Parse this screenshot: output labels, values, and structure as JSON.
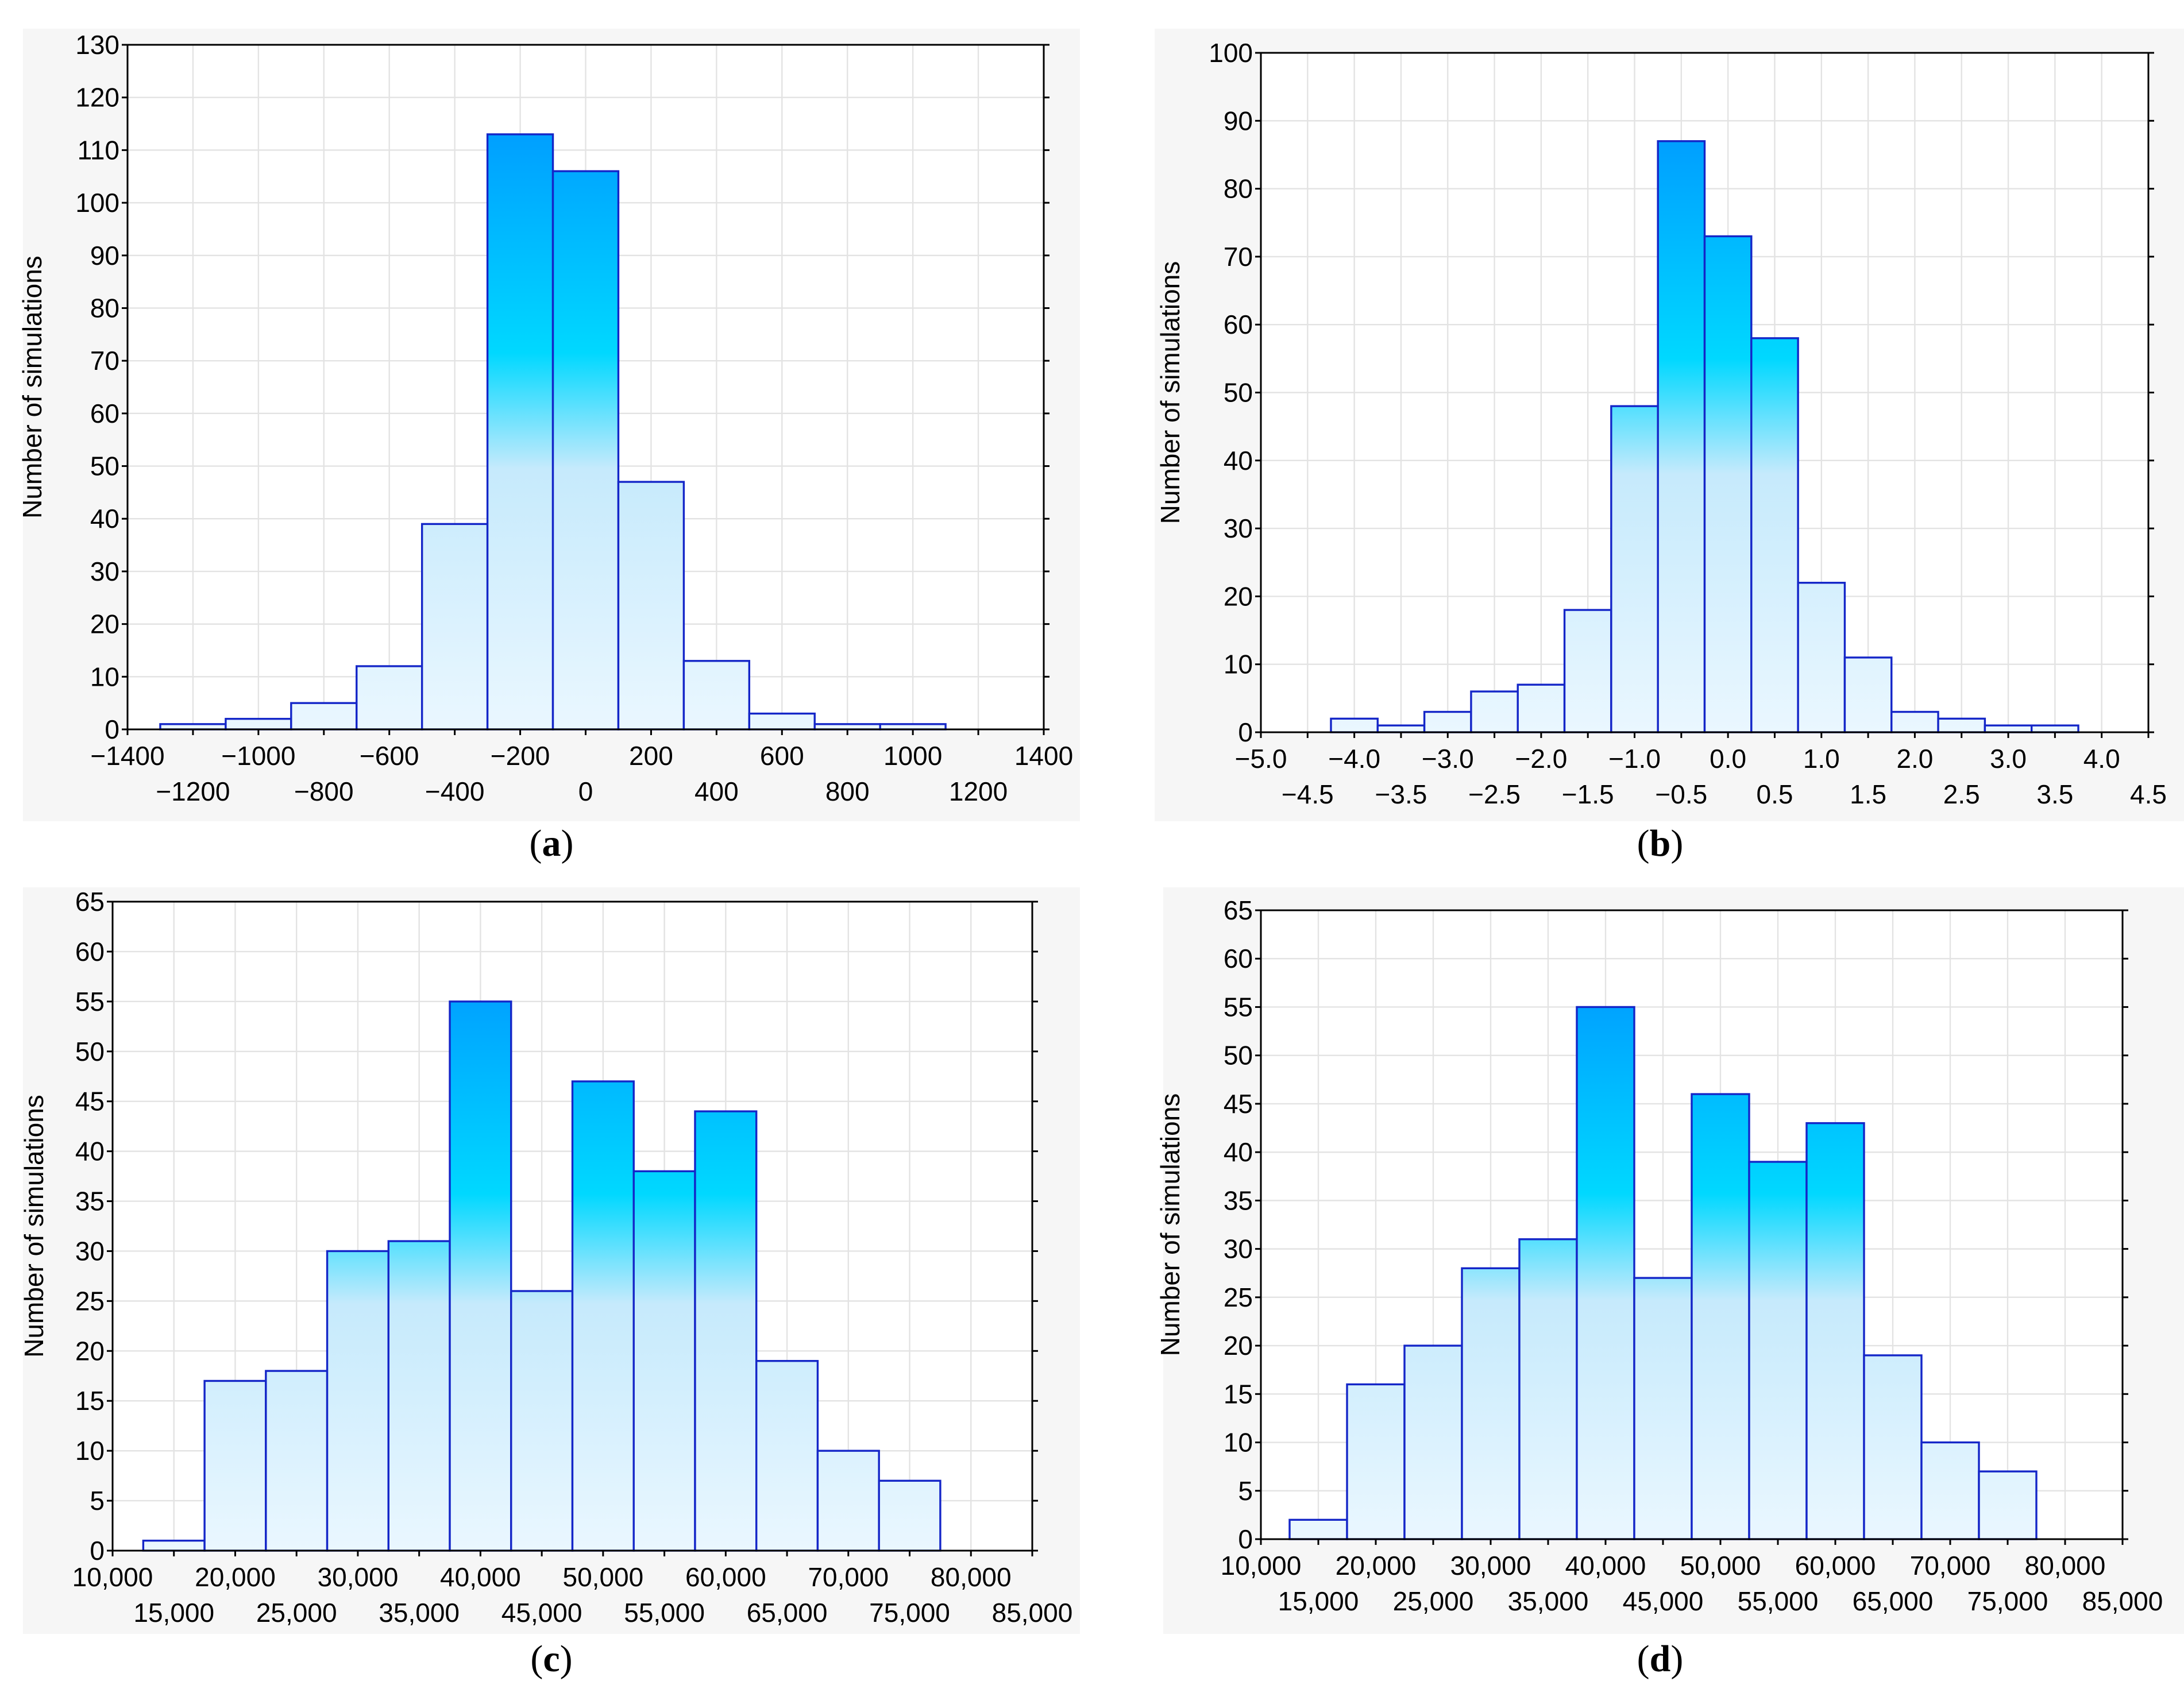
{
  "figure": {
    "title": ""
  },
  "colors": {
    "bar_stroke": "#1426c8",
    "bar_top": "#0088ff",
    "bar_mid": "#00d8ff",
    "bar_light": "#c6eafc",
    "bar_bottom": "#eaf7ff"
  },
  "chart_data": [
    {
      "id": "a",
      "type": "bar",
      "caption": {
        "open": "(",
        "letter": "a",
        "close": ")"
      },
      "ylabel": "Number of simulations",
      "xlabel": "",
      "xlim": [
        -1400,
        1400
      ],
      "ylim": [
        0,
        130
      ],
      "yticks": [
        0,
        10,
        20,
        30,
        40,
        50,
        60,
        70,
        80,
        90,
        100,
        110,
        120,
        130
      ],
      "yticklabels": [
        "0",
        "10",
        "20",
        "30",
        "40",
        "50",
        "60",
        "70",
        "80",
        "90",
        "100",
        "110",
        "120",
        "130"
      ],
      "xticks_upper": [
        -1400,
        -1000,
        -600,
        -200,
        200,
        600,
        1000,
        1400
      ],
      "xticklabels_upper": [
        "−1400",
        "−1000",
        "−600",
        "−200",
        "200",
        "600",
        "1000",
        "1400"
      ],
      "xticks_lower": [
        -1200,
        -800,
        -400,
        0,
        400,
        800,
        1200
      ],
      "xticklabels_lower": [
        "−1200",
        "−800",
        "−400",
        "0",
        "400",
        "800",
        "1200"
      ],
      "xgrid": [
        -1400,
        -1200,
        -1000,
        -800,
        -600,
        -400,
        -200,
        0,
        200,
        400,
        600,
        800,
        1000,
        1200,
        1400
      ],
      "bins": [
        {
          "x0": -1300,
          "x1": -1100,
          "value": 1
        },
        {
          "x0": -1100,
          "x1": -900,
          "value": 2
        },
        {
          "x0": -900,
          "x1": -700,
          "value": 5
        },
        {
          "x0": -700,
          "x1": -500,
          "value": 12
        },
        {
          "x0": -500,
          "x1": -300,
          "value": 39
        },
        {
          "x0": -300,
          "x1": -100,
          "value": 113
        },
        {
          "x0": -100,
          "x1": 100,
          "value": 106
        },
        {
          "x0": 100,
          "x1": 300,
          "value": 47
        },
        {
          "x0": 300,
          "x1": 500,
          "value": 13
        },
        {
          "x0": 500,
          "x1": 700,
          "value": 3
        },
        {
          "x0": 700,
          "x1": 900,
          "value": 1
        },
        {
          "x0": 900,
          "x1": 1100,
          "value": 1
        }
      ]
    },
    {
      "id": "b",
      "type": "bar",
      "caption": {
        "open": "(",
        "letter": "b",
        "close": ")"
      },
      "ylabel": "Number of simulations",
      "xlabel": "",
      "xlim": [
        -5.0,
        4.5
      ],
      "ylim": [
        0,
        100
      ],
      "yticks": [
        0,
        10,
        20,
        30,
        40,
        50,
        60,
        70,
        80,
        90,
        100
      ],
      "yticklabels": [
        "0",
        "10",
        "20",
        "30",
        "40",
        "50",
        "60",
        "70",
        "80",
        "90",
        "100"
      ],
      "xticks_upper": [
        -5.0,
        -4.0,
        -3.0,
        -2.0,
        -1.0,
        0.0,
        1.0,
        2.0,
        3.0,
        4.0
      ],
      "xticklabels_upper": [
        "−5.0",
        "−4.0",
        "−3.0",
        "−2.0",
        "−1.0",
        "0.0",
        "1.0",
        "2.0",
        "3.0",
        "4.0"
      ],
      "xticks_lower": [
        -4.5,
        -3.5,
        -2.5,
        -1.5,
        -0.5,
        0.5,
        1.5,
        2.5,
        3.5,
        4.5
      ],
      "xticklabels_lower": [
        "−4.5",
        "−3.5",
        "−2.5",
        "−1.5",
        "−0.5",
        "0.5",
        "1.5",
        "2.5",
        "3.5",
        "4.5"
      ],
      "xgrid": [
        -5.0,
        -4.5,
        -4.0,
        -3.5,
        -3.0,
        -2.5,
        -2.0,
        -1.5,
        -1.0,
        -0.5,
        0.0,
        0.5,
        1.0,
        1.5,
        2.0,
        2.5,
        3.0,
        3.5,
        4.0,
        4.5
      ],
      "bins": [
        {
          "x0": -4.25,
          "x1": -3.75,
          "value": 2
        },
        {
          "x0": -3.75,
          "x1": -3.25,
          "value": 1
        },
        {
          "x0": -3.25,
          "x1": -2.75,
          "value": 3
        },
        {
          "x0": -2.75,
          "x1": -2.25,
          "value": 6
        },
        {
          "x0": -2.25,
          "x1": -1.75,
          "value": 7
        },
        {
          "x0": -1.75,
          "x1": -1.25,
          "value": 18
        },
        {
          "x0": -1.25,
          "x1": -0.75,
          "value": 48
        },
        {
          "x0": -0.75,
          "x1": -0.25,
          "value": 87
        },
        {
          "x0": -0.25,
          "x1": 0.25,
          "value": 73
        },
        {
          "x0": 0.25,
          "x1": 0.75,
          "value": 58
        },
        {
          "x0": 0.75,
          "x1": 1.25,
          "value": 22
        },
        {
          "x0": 1.25,
          "x1": 1.75,
          "value": 11
        },
        {
          "x0": 1.75,
          "x1": 2.25,
          "value": 3
        },
        {
          "x0": 2.25,
          "x1": 2.75,
          "value": 2
        },
        {
          "x0": 2.75,
          "x1": 3.25,
          "value": 1
        },
        {
          "x0": 3.25,
          "x1": 3.75,
          "value": 1
        }
      ]
    },
    {
      "id": "c",
      "type": "bar",
      "caption": {
        "open": "(",
        "letter": "c",
        "close": ")"
      },
      "ylabel": "Number of simulations",
      "xlabel": "",
      "xlim": [
        10000,
        85000
      ],
      "ylim": [
        0,
        65
      ],
      "yticks": [
        0,
        5,
        10,
        15,
        20,
        25,
        30,
        35,
        40,
        45,
        50,
        55,
        60,
        65
      ],
      "yticklabels": [
        "0",
        "5",
        "10",
        "15",
        "20",
        "25",
        "30",
        "35",
        "40",
        "45",
        "50",
        "55",
        "60",
        "65"
      ],
      "xticks_upper": [
        10000,
        20000,
        30000,
        40000,
        50000,
        60000,
        70000,
        80000
      ],
      "xticklabels_upper": [
        "10,000",
        "20,000",
        "30,000",
        "40,000",
        "50,000",
        "60,000",
        "70,000",
        "80,000"
      ],
      "xticks_lower": [
        15000,
        25000,
        35000,
        45000,
        55000,
        65000,
        75000,
        85000
      ],
      "xticklabels_lower": [
        "15,000",
        "25,000",
        "35,000",
        "45,000",
        "55,000",
        "65,000",
        "75,000",
        "85,000"
      ],
      "xgrid": [
        10000,
        15000,
        20000,
        25000,
        30000,
        35000,
        40000,
        45000,
        50000,
        55000,
        60000,
        65000,
        70000,
        75000,
        80000,
        85000
      ],
      "bins": [
        {
          "x0": 12500,
          "x1": 17500,
          "value": 1
        },
        {
          "x0": 17500,
          "x1": 22500,
          "value": 17
        },
        {
          "x0": 22500,
          "x1": 27500,
          "value": 18
        },
        {
          "x0": 27500,
          "x1": 32500,
          "value": 30
        },
        {
          "x0": 32500,
          "x1": 37500,
          "value": 31
        },
        {
          "x0": 37500,
          "x1": 42500,
          "value": 55
        },
        {
          "x0": 42500,
          "x1": 47500,
          "value": 26
        },
        {
          "x0": 47500,
          "x1": 52500,
          "value": 47
        },
        {
          "x0": 52500,
          "x1": 57500,
          "value": 38
        },
        {
          "x0": 57500,
          "x1": 62500,
          "value": 44
        },
        {
          "x0": 62500,
          "x1": 67500,
          "value": 19
        },
        {
          "x0": 67500,
          "x1": 72500,
          "value": 10
        },
        {
          "x0": 72500,
          "x1": 77500,
          "value": 7
        }
      ]
    },
    {
      "id": "d",
      "type": "bar",
      "caption": {
        "open": "(",
        "letter": "d",
        "close": ")"
      },
      "ylabel": "Number of simulations",
      "xlabel": "",
      "xlim": [
        10000,
        85000
      ],
      "ylim": [
        0,
        65
      ],
      "yticks": [
        0,
        5,
        10,
        15,
        20,
        25,
        30,
        35,
        40,
        45,
        50,
        55,
        60,
        65
      ],
      "yticklabels": [
        "0",
        "5",
        "10",
        "15",
        "20",
        "25",
        "30",
        "35",
        "40",
        "45",
        "50",
        "55",
        "60",
        "65"
      ],
      "xticks_upper": [
        10000,
        20000,
        30000,
        40000,
        50000,
        60000,
        70000,
        80000
      ],
      "xticklabels_upper": [
        "10,000",
        "20,000",
        "30,000",
        "40,000",
        "50,000",
        "60,000",
        "70,000",
        "80,000"
      ],
      "xticks_lower": [
        15000,
        25000,
        35000,
        45000,
        55000,
        65000,
        75000,
        85000
      ],
      "xticklabels_lower": [
        "15,000",
        "25,000",
        "35,000",
        "45,000",
        "55,000",
        "65,000",
        "75,000",
        "85,000"
      ],
      "xgrid": [
        10000,
        15000,
        20000,
        25000,
        30000,
        35000,
        40000,
        45000,
        50000,
        55000,
        60000,
        65000,
        70000,
        75000,
        80000,
        85000
      ],
      "bins": [
        {
          "x0": 12500,
          "x1": 17500,
          "value": 2
        },
        {
          "x0": 17500,
          "x1": 22500,
          "value": 16
        },
        {
          "x0": 22500,
          "x1": 27500,
          "value": 20
        },
        {
          "x0": 27500,
          "x1": 32500,
          "value": 28
        },
        {
          "x0": 32500,
          "x1": 37500,
          "value": 31
        },
        {
          "x0": 37500,
          "x1": 42500,
          "value": 55
        },
        {
          "x0": 42500,
          "x1": 47500,
          "value": 27
        },
        {
          "x0": 47500,
          "x1": 52500,
          "value": 46
        },
        {
          "x0": 52500,
          "x1": 57500,
          "value": 39
        },
        {
          "x0": 57500,
          "x1": 62500,
          "value": 43
        },
        {
          "x0": 62500,
          "x1": 67500,
          "value": 19
        },
        {
          "x0": 67500,
          "x1": 72500,
          "value": 10
        },
        {
          "x0": 72500,
          "x1": 77500,
          "value": 7
        }
      ]
    }
  ]
}
